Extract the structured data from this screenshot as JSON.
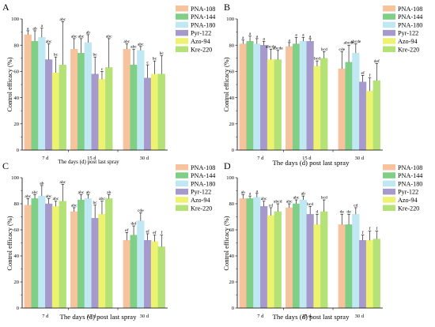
{
  "chart_data": [
    {
      "type": "bar",
      "panel_label": "A",
      "categories": [
        "7 d",
        "15 d",
        "30 d"
      ],
      "ylabel": "Control efficacy (%)",
      "xlabel": "The days (d) post last spray",
      "ylim": [
        0,
        100
      ],
      "yticks": [
        0,
        20,
        40,
        60,
        80,
        100
      ],
      "legend_position": "top-right",
      "series": [
        {
          "name": "PNA-108",
          "values": [
            88,
            77,
            77
          ],
          "errors": [
            3,
            8,
            4
          ],
          "letters": [
            "a",
            "abc",
            "abc"
          ]
        },
        {
          "name": "PNA-144",
          "values": [
            83,
            74,
            65
          ],
          "errors": [
            8,
            11,
            12
          ],
          "letters": [
            "ab",
            "abc",
            "abc"
          ]
        },
        {
          "name": "PNA-180",
          "values": [
            86,
            82,
            76
          ],
          "errors": [
            7,
            6,
            3
          ],
          "letters": [
            "a",
            "ab",
            "abc"
          ]
        },
        {
          "name": "Pyr-122",
          "values": [
            69,
            58,
            55
          ],
          "errors": [
            12,
            13,
            10
          ],
          "letters": [
            "abc",
            "bc",
            "c"
          ]
        },
        {
          "name": "Azo-94",
          "values": [
            59,
            54,
            58
          ],
          "errors": [
            12,
            6,
            10
          ],
          "letters": [
            "bc",
            "c",
            "bc"
          ]
        },
        {
          "name": "Kre-220",
          "values": [
            65,
            63,
            58
          ],
          "errors": [
            33,
            22,
            14
          ],
          "letters": [
            "abc",
            "abc",
            "bc"
          ]
        }
      ]
    },
    {
      "type": "bar",
      "panel_label": "B",
      "categories": [
        "7 d",
        "15 d",
        "30 d"
      ],
      "ylabel": "Control efficacy (%)",
      "xlabel": "The days (d) post last spray",
      "ylim": [
        0,
        100
      ],
      "yticks": [
        0,
        20,
        40,
        60,
        80,
        100
      ],
      "legend_position": "top-right",
      "series": [
        {
          "name": "PNA-108",
          "values": [
            81,
            79,
            62
          ],
          "errors": [
            3,
            3,
            13
          ],
          "letters": [
            "a",
            "a",
            "cde"
          ]
        },
        {
          "name": "PNA-144",
          "values": [
            83,
            81,
            67
          ],
          "errors": [
            4,
            5,
            13
          ],
          "letters": [
            "a",
            "a",
            "abcde"
          ]
        },
        {
          "name": "PNA-180",
          "values": [
            81,
            83,
            74
          ],
          "errors": [
            4,
            3,
            7
          ],
          "letters": [
            "a",
            "a",
            "abcde"
          ]
        },
        {
          "name": "Pyr-122",
          "values": [
            80,
            83,
            52
          ],
          "errors": [
            3,
            2,
            5
          ],
          "letters": [
            "a",
            "a",
            "ef"
          ]
        },
        {
          "name": "Azo-94",
          "values": [
            69,
            64,
            45
          ],
          "errors": [
            8,
            4,
            10
          ],
          "letters": [
            "abcde",
            "bcd",
            "f"
          ]
        },
        {
          "name": "Kre-220",
          "values": [
            69,
            70,
            53
          ],
          "errors": [
            7,
            5,
            13
          ],
          "letters": [
            "abcde",
            "bcd",
            "def"
          ]
        }
      ]
    },
    {
      "type": "bar",
      "panel_label": "C",
      "categories": [
        "7 d",
        "15 d",
        "30 d"
      ],
      "ylabel": "Control efficacy (%)",
      "xlabel": "The days (d) post last spray",
      "ylim": [
        0,
        100
      ],
      "yticks": [
        0,
        20,
        40,
        60,
        80,
        100
      ],
      "legend_position": "top-right",
      "series": [
        {
          "name": "PNA-108",
          "values": [
            79,
            74,
            52
          ],
          "errors": [
            5,
            3,
            6
          ],
          "letters": [
            "abc",
            "abc",
            "ef"
          ]
        },
        {
          "name": "PNA-144",
          "values": [
            84,
            83,
            56
          ],
          "errors": [
            3,
            4,
            7
          ],
          "letters": [
            "abc",
            "abc",
            "def"
          ]
        },
        {
          "name": "PNA-180",
          "values": [
            86,
            84,
            67
          ],
          "errors": [
            8,
            3,
            6
          ],
          "letters": [
            "ab",
            "ab",
            "cde"
          ]
        },
        {
          "name": "Pyr-122",
          "values": [
            80,
            69,
            52
          ],
          "errors": [
            4,
            10,
            5
          ],
          "letters": [
            "abc",
            "bc",
            "ef"
          ]
        },
        {
          "name": "Azo-94",
          "values": [
            78,
            72,
            51
          ],
          "errors": [
            4,
            10,
            5
          ],
          "letters": [
            "abc",
            "abc",
            "ef"
          ]
        },
        {
          "name": "Kre-220",
          "values": [
            82,
            84,
            47
          ],
          "errors": [
            13,
            3,
            9
          ],
          "letters": [
            "abc",
            "ab",
            "f"
          ]
        }
      ]
    },
    {
      "type": "bar",
      "panel_label": "D",
      "categories": [
        "7 d",
        "15 d",
        "30 d"
      ],
      "ylabel": "Control efficacy (%)",
      "xlabel": "The days (d) post last spray",
      "ylim": [
        0,
        100
      ],
      "yticks": [
        0,
        20,
        40,
        60,
        80,
        100
      ],
      "legend_position": "top-right",
      "series": [
        {
          "name": "PNA-108",
          "values": [
            84,
            77,
            64
          ],
          "errors": [
            3,
            3,
            8
          ],
          "letters": [
            "ab",
            "abc",
            "de"
          ]
        },
        {
          "name": "PNA-144",
          "values": [
            84,
            80,
            64
          ],
          "errors": [
            2,
            3,
            8
          ],
          "letters": [
            "a",
            "abc",
            "de"
          ]
        },
        {
          "name": "PNA-180",
          "values": [
            85,
            83,
            72
          ],
          "errors": [
            3,
            3,
            5
          ],
          "letters": [
            "a",
            "ab",
            "cd"
          ]
        },
        {
          "name": "Pyr-122",
          "values": [
            78,
            72,
            52
          ],
          "errors": [
            4,
            6,
            4
          ],
          "letters": [
            "abc",
            "bcd",
            "f"
          ]
        },
        {
          "name": "Azo-94",
          "values": [
            71,
            64,
            52
          ],
          "errors": [
            6,
            8,
            7
          ],
          "letters": [
            "cd",
            "d",
            "f"
          ]
        },
        {
          "name": "Kre-220",
          "values": [
            74,
            74,
            53
          ],
          "errors": [
            6,
            9,
            6
          ],
          "letters": [
            "abcd",
            "bcd",
            "f"
          ]
        }
      ]
    }
  ],
  "colors": {
    "PNA-108": "#f7c39c",
    "PNA-144": "#7fcf86",
    "PNA-180": "#bfe8f2",
    "Pyr-122": "#a59acb",
    "Azo-94": "#eef271",
    "Kre-220": "#b4e277",
    "axis": "#000000"
  }
}
